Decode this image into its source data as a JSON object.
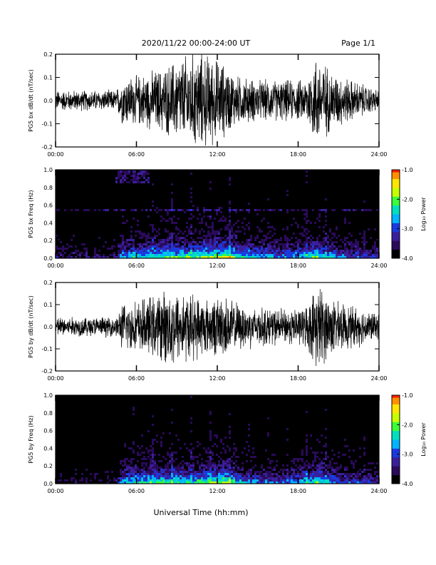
{
  "header": {
    "title": "2020/11/22  00:00-24:00 UT",
    "page": "Page 1/1"
  },
  "xlabel": "Universal Time (hh:mm)",
  "colorbar_colors": [
    "#000000",
    "#2a0a5a",
    "#3a1f9a",
    "#1a3ae0",
    "#00b4ff",
    "#00e0c0",
    "#3aff3a",
    "#c8ff00",
    "#ffe600",
    "#ff9000",
    "#ff2000"
  ],
  "chart_data": [
    {
      "type": "line",
      "ylabel": "PG5 bx dB/dt (nT/sec)",
      "xticks": [
        "00:00",
        "06:00",
        "12:00",
        "18:00",
        "24:00"
      ],
      "xlim": [
        0,
        24
      ],
      "ylim": [
        -0.2,
        0.2
      ],
      "yticks": [
        "-0.2",
        "-0.1",
        "0.0",
        "0.1",
        "0.2"
      ],
      "activity": [
        [
          0,
          0.05
        ],
        [
          4.5,
          0.05
        ],
        [
          5.0,
          0.12
        ],
        [
          6,
          0.12
        ],
        [
          7,
          0.14
        ],
        [
          8,
          0.16
        ],
        [
          9,
          0.2
        ],
        [
          10.5,
          0.24
        ],
        [
          11.5,
          0.22
        ],
        [
          12.5,
          0.18
        ],
        [
          13.5,
          0.12
        ],
        [
          15,
          0.1
        ],
        [
          17,
          0.1
        ],
        [
          18.5,
          0.1
        ],
        [
          19.3,
          0.22
        ],
        [
          19.8,
          0.2
        ],
        [
          20.5,
          0.14
        ],
        [
          22,
          0.1
        ],
        [
          24,
          0.05
        ]
      ]
    },
    {
      "type": "heatmap",
      "ylabel": "PG5 bx Freq (Hz)",
      "xticks": [
        "00:00",
        "06:00",
        "12:00",
        "18:00",
        "24:00"
      ],
      "xlim": [
        0,
        24
      ],
      "ylim": [
        0,
        1.0
      ],
      "yticks": [
        "0.0",
        "0.2",
        "0.4",
        "0.6",
        "0.8",
        "1.0"
      ],
      "colorbar_label": "Log₁₀ Power",
      "colorbar_ticks": [
        "-1.0",
        "-2.0",
        "-3.0",
        "-4.0"
      ],
      "colorbar_range": [
        -4.0,
        -1.0
      ],
      "activity": [
        [
          0,
          0.2
        ],
        [
          4.5,
          0.2
        ],
        [
          5.0,
          0.5
        ],
        [
          6,
          0.5
        ],
        [
          8,
          0.6
        ],
        [
          10,
          0.6
        ],
        [
          12.5,
          0.75
        ],
        [
          14,
          0.5
        ],
        [
          17,
          0.4
        ],
        [
          19.5,
          0.6
        ],
        [
          21,
          0.4
        ],
        [
          24,
          0.3
        ]
      ]
    },
    {
      "type": "line",
      "ylabel": "PG5 by dB/dt (nT/sec)",
      "xticks": [
        "00:00",
        "06:00",
        "12:00",
        "18:00",
        "24:00"
      ],
      "xlim": [
        0,
        24
      ],
      "ylim": [
        -0.2,
        0.2
      ],
      "yticks": [
        "-0.2",
        "-0.1",
        "0.0",
        "0.1",
        "0.2"
      ],
      "activity": [
        [
          0,
          0.05
        ],
        [
          4.5,
          0.05
        ],
        [
          5.0,
          0.12
        ],
        [
          6,
          0.13
        ],
        [
          7.5,
          0.16
        ],
        [
          8.5,
          0.2
        ],
        [
          10,
          0.17
        ],
        [
          11.5,
          0.14
        ],
        [
          12.5,
          0.16
        ],
        [
          13.5,
          0.12
        ],
        [
          15,
          0.1
        ],
        [
          17,
          0.09
        ],
        [
          18.5,
          0.1
        ],
        [
          19.5,
          0.22
        ],
        [
          20,
          0.18
        ],
        [
          21,
          0.12
        ],
        [
          22.5,
          0.1
        ],
        [
          24,
          0.06
        ]
      ]
    },
    {
      "type": "heatmap",
      "ylabel": "PG5 by Freq (Hz)",
      "xticks": [
        "00:00",
        "06:00",
        "12:00",
        "18:00",
        "24:00"
      ],
      "xlim": [
        0,
        24
      ],
      "ylim": [
        0,
        1.0
      ],
      "yticks": [
        "0.0",
        "0.2",
        "0.4",
        "0.6",
        "0.8",
        "1.0"
      ],
      "colorbar_label": "Log₁₀ Power",
      "colorbar_ticks": [
        "-1.0",
        "-2.0",
        "-3.0",
        "-4.0"
      ],
      "colorbar_range": [
        -4.0,
        -1.0
      ],
      "activity": [
        [
          0,
          0.15
        ],
        [
          4.5,
          0.15
        ],
        [
          5.0,
          0.5
        ],
        [
          6,
          0.55
        ],
        [
          8,
          0.6
        ],
        [
          10,
          0.55
        ],
        [
          12.5,
          0.7
        ],
        [
          14,
          0.45
        ],
        [
          17,
          0.35
        ],
        [
          19.5,
          0.6
        ],
        [
          21,
          0.4
        ],
        [
          24,
          0.3
        ]
      ]
    }
  ]
}
